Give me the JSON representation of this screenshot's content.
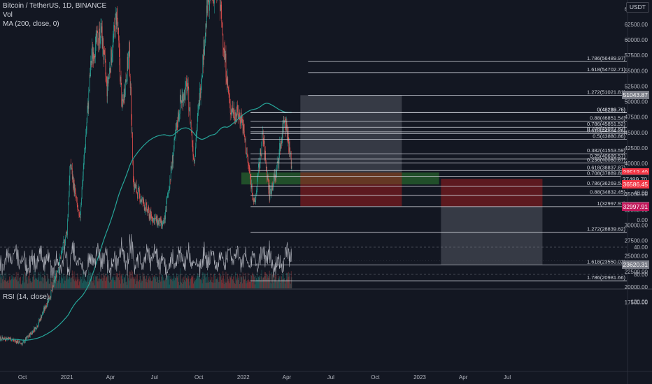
{
  "header": {
    "symbol_line": "Bitcoin / TetherUS, 1D, BINANCE",
    "vol_label": "Vol",
    "ma_label": "MA (200, close, 0)",
    "currency_badge": "USDT"
  },
  "rsi": {
    "label": "RSI (14, close)",
    "ticks": [
      "120.00",
      "80.00",
      "40.00",
      "0.00",
      "-40.00"
    ],
    "band_upper": 80,
    "band_lower": 40
  },
  "price_axis": {
    "ticks": [
      "65000.00",
      "62500.00",
      "60000.00",
      "57500.00",
      "55000.00",
      "52500.00",
      "50000.00",
      "47500.00",
      "45000.00",
      "42500.00",
      "40000.00",
      "37500.00",
      "35000.00",
      "32500.00",
      "30000.00",
      "27500.00",
      "25000.00",
      "22500.00",
      "20000.00",
      "17500.00"
    ],
    "min": 17500,
    "max": 66000
  },
  "price_labels": [
    {
      "text": "51043.87",
      "price": 51043.87,
      "color": "#787b86"
    },
    {
      "text": "38513.40",
      "price": 38513.4,
      "color": "#f23645"
    },
    {
      "text": "18:59:24",
      "price": 37900,
      "color": "#f23645"
    },
    {
      "text": "37489.70",
      "price": 37489.7,
      "color": "#131722",
      "text_color": "#d1d4dc"
    },
    {
      "text": "36586.45",
      "price": 36586.45,
      "color": "#f23645"
    },
    {
      "text": "33076.71",
      "price": 33076.71,
      "color": "#787b86"
    },
    {
      "text": "32997.91",
      "price": 32997.91,
      "color": "#c2185b"
    },
    {
      "text": "23620.31",
      "price": 23620.31,
      "color": "#787b86"
    }
  ],
  "time_axis": {
    "labels": [
      {
        "text": "Oct",
        "date": "2020-10"
      },
      {
        "text": "2021",
        "date": "2021-01"
      },
      {
        "text": "Apr",
        "date": "2021-04"
      },
      {
        "text": "Jul",
        "date": "2021-07"
      },
      {
        "text": "Oct",
        "date": "2021-10"
      },
      {
        "text": "2022",
        "date": "2022-01"
      },
      {
        "text": "Apr",
        "date": "2022-04"
      },
      {
        "text": "Jul",
        "date": "2022-07"
      },
      {
        "text": "Oct",
        "date": "2022-10"
      },
      {
        "text": "2023",
        "date": "2023-01"
      },
      {
        "text": "Apr",
        "date": "2023-04"
      },
      {
        "text": "Jul",
        "date": "2023-07"
      }
    ]
  },
  "fib_sets": [
    {
      "name": "upper",
      "start_date": "2022-01-16",
      "levels": [
        {
          "label": "0(48189.76)",
          "price": 48189.76
        },
        {
          "label": "0.88(46851.54)",
          "price": 46851.54
        },
        {
          "label": "0.786(45851.52)",
          "price": 45851.52
        },
        {
          "label": "0.708(45097.87)",
          "price": 45097.87
        },
        {
          "label": "0.618(44804.26)",
          "price": 44804.26
        },
        {
          "label": "0.5(43880.86)",
          "price": 43880.86
        },
        {
          "label": "0.382(41553.59)",
          "price": 41553.59
        },
        {
          "label": "0.25(40689.57)",
          "price": 40689.57
        },
        {
          "label": "0.236(40080.67)",
          "price": 40080.67
        }
      ]
    },
    {
      "name": "lower",
      "start_date": "2022-01-16",
      "levels": [
        {
          "label": "0(48216.76)",
          "price": 48216.76
        },
        {
          "label": "0.618(38837.87)",
          "price": 38837.87
        },
        {
          "label": "0.708(37889.80)",
          "price": 37889.8
        },
        {
          "label": "0.786(36269.51)",
          "price": 36269.51
        },
        {
          "label": "0.88(34832.45)",
          "price": 34832.45
        },
        {
          "label": "1(32997.91)",
          "price": 32997.91
        },
        {
          "label": "1.272(28839.62)",
          "price": 28839.62
        },
        {
          "label": "1.618(23550.02)",
          "price": 23550.02
        },
        {
          "label": "1.786(20981.66)",
          "price": 20981.66
        }
      ]
    },
    {
      "name": "extension",
      "start_date": "2022-05-15",
      "levels": [
        {
          "label": "1.786(56489.97)",
          "price": 56489.97
        },
        {
          "label": "1.618(54702.71)",
          "price": 54702.71
        },
        {
          "label": "1.272(51021.81)",
          "price": 51021.81
        }
      ]
    }
  ],
  "zones": [
    {
      "name": "green-support-zone",
      "from": "2021-12-28",
      "to": "2023-02-10",
      "p_top": 38513,
      "p_bottom": 36586,
      "color": "#2e7d32",
      "opacity": 0.55
    },
    {
      "name": "position-profit-zone",
      "from": "2022-04-29",
      "to": "2022-11-25",
      "p_top": 51043.87,
      "p_bottom": 38513,
      "color": "#787b86",
      "opacity": 0.35
    },
    {
      "name": "position-loss-zone",
      "from": "2022-04-29",
      "to": "2022-11-25",
      "p_top": 38513,
      "p_bottom": 33076.71,
      "color": "#b71c1c",
      "opacity": 0.45
    },
    {
      "name": "short-loss-zone",
      "from": "2023-02-14",
      "to": "2023-09-12",
      "p_top": 37489.7,
      "p_bottom": 32997.91,
      "color": "#b71c1c",
      "opacity": 0.45
    },
    {
      "name": "short-profit-zone",
      "from": "2023-02-14",
      "to": "2023-09-12",
      "p_top": 32997.91,
      "p_bottom": 23620.31,
      "color": "#787b86",
      "opacity": 0.35
    }
  ],
  "chart_data": {
    "type": "candlestick",
    "title": "Bitcoin / TetherUS, 1D, BINANCE",
    "xlabel": "",
    "ylabel": "",
    "ylim": [
      17500,
      66000
    ],
    "price_path": [
      {
        "date": "2020-08-01",
        "close": 11500
      },
      {
        "date": "2020-09-01",
        "close": 11700
      },
      {
        "date": "2020-10-01",
        "close": 10800
      },
      {
        "date": "2020-11-01",
        "close": 13800
      },
      {
        "date": "2020-12-01",
        "close": 19300
      },
      {
        "date": "2021-01-01",
        "close": 29000
      },
      {
        "date": "2021-01-08",
        "close": 40000
      },
      {
        "date": "2021-01-27",
        "close": 30500
      },
      {
        "date": "2021-02-21",
        "close": 57500
      },
      {
        "date": "2021-03-13",
        "close": 61500
      },
      {
        "date": "2021-03-25",
        "close": 52000
      },
      {
        "date": "2021-04-14",
        "close": 64500
      },
      {
        "date": "2021-04-25",
        "close": 49000
      },
      {
        "date": "2021-05-10",
        "close": 58000
      },
      {
        "date": "2021-05-19",
        "close": 36500
      },
      {
        "date": "2021-06-22",
        "close": 31500
      },
      {
        "date": "2021-07-20",
        "close": 29800
      },
      {
        "date": "2021-08-23",
        "close": 49800
      },
      {
        "date": "2021-09-07",
        "close": 52500
      },
      {
        "date": "2021-09-21",
        "close": 40500
      },
      {
        "date": "2021-10-20",
        "close": 66500
      },
      {
        "date": "2021-11-10",
        "close": 68500
      },
      {
        "date": "2021-12-04",
        "close": 49000
      },
      {
        "date": "2021-12-28",
        "close": 47500
      },
      {
        "date": "2022-01-10",
        "close": 40500
      },
      {
        "date": "2022-01-24",
        "close": 33000
      },
      {
        "date": "2022-02-10",
        "close": 44500
      },
      {
        "date": "2022-02-24",
        "close": 35000
      },
      {
        "date": "2022-03-10",
        "close": 38500
      },
      {
        "date": "2022-03-28",
        "close": 48000
      },
      {
        "date": "2022-04-11",
        "close": 39500
      }
    ]
  }
}
